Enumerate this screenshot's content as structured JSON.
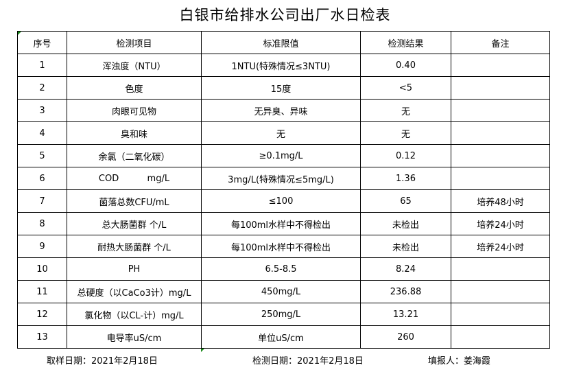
{
  "title": "白银市给排水公司出厂水日检表",
  "headers": [
    "序号",
    "检测项目",
    "标准限值",
    "检测结果",
    "备注"
  ],
  "rows": [
    [
      "1",
      "浑浊度（NTU）",
      "1NTU(特殊情况≤3NTU)",
      "0.40",
      ""
    ],
    [
      "2",
      "色度",
      "15度",
      "<5",
      ""
    ],
    [
      "3",
      "肉眼可见物",
      "无异臭、异味",
      "无",
      ""
    ],
    [
      "4",
      "臭和味",
      "无",
      "无",
      ""
    ],
    [
      "5",
      "余氯（二氧化碳）",
      "≥0.1mg/L",
      "0.12",
      ""
    ],
    [
      "6",
      "COD          mg/L",
      "3mg/L(特殊情况≤5mg/L)",
      "1.36",
      ""
    ],
    [
      "7",
      "菌落总数CFU/mL",
      "≤100",
      "65",
      "培养48小时"
    ],
    [
      "8",
      "总大肠菌群 个/L",
      "每100ml水样中不得检出",
      "未检出",
      "培养24小时"
    ],
    [
      "9",
      "耐热大肠菌群 个/L",
      "每100ml水样中不得检出",
      "未检出",
      "培养24小时"
    ],
    [
      "10",
      "PH",
      "6.5-8.5",
      "8.24",
      ""
    ],
    [
      "11",
      "总硬度（以CaCo3计）mg/L",
      "450mg/L",
      "236.88",
      ""
    ],
    [
      "12",
      "氯化物（以CL-计）mg/L",
      "250mg/L",
      "13.21",
      ""
    ],
    [
      "13",
      "电导率uS/cm",
      "单位uS/cm",
      "260",
      ""
    ]
  ],
  "footer": {
    "sampling_date": "取样日期：2021年2月18日",
    "test_date": "检测日期：2021年2月18日",
    "filled_by": "填报人：姜海霞"
  }
}
